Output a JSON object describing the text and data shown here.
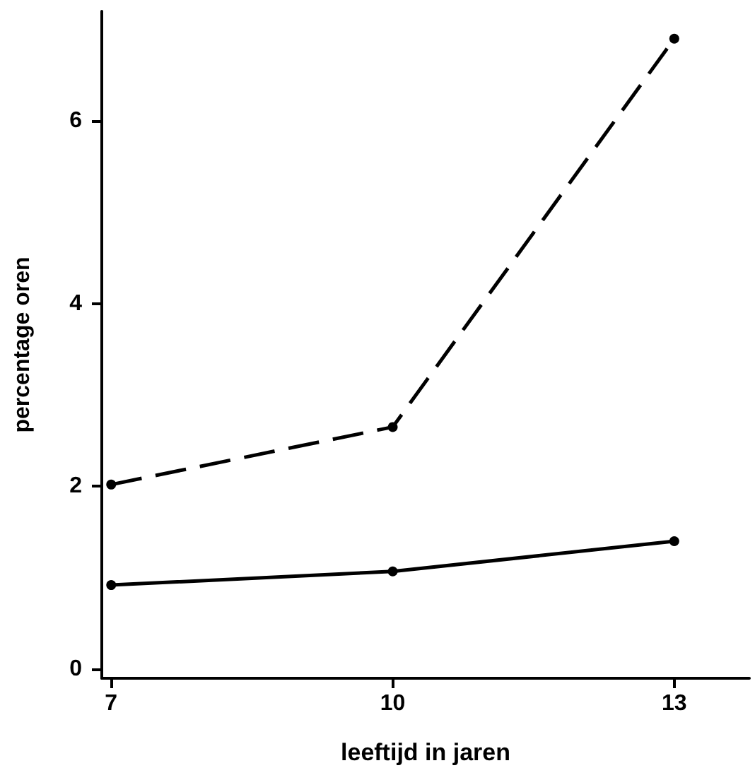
{
  "chart_data": {
    "type": "line",
    "xlabel": "leeftijd in jaren",
    "ylabel": "percentage oren",
    "x": [
      7,
      10,
      13
    ],
    "series": [
      {
        "color": "#000000",
        "line_style": "dashed",
        "values": [
          2.02,
          2.65,
          6.9
        ]
      },
      {
        "color": "#000000",
        "line_style": "solid",
        "values": [
          0.92,
          1.07,
          1.4
        ]
      }
    ],
    "xlim": [
      6.9,
      13.8
    ],
    "xticks": [
      7,
      10,
      13
    ],
    "ylim": [
      -0.1,
      7.2
    ],
    "yticks": [
      0,
      2,
      4,
      6
    ],
    "grid": false,
    "marker": "circle"
  }
}
